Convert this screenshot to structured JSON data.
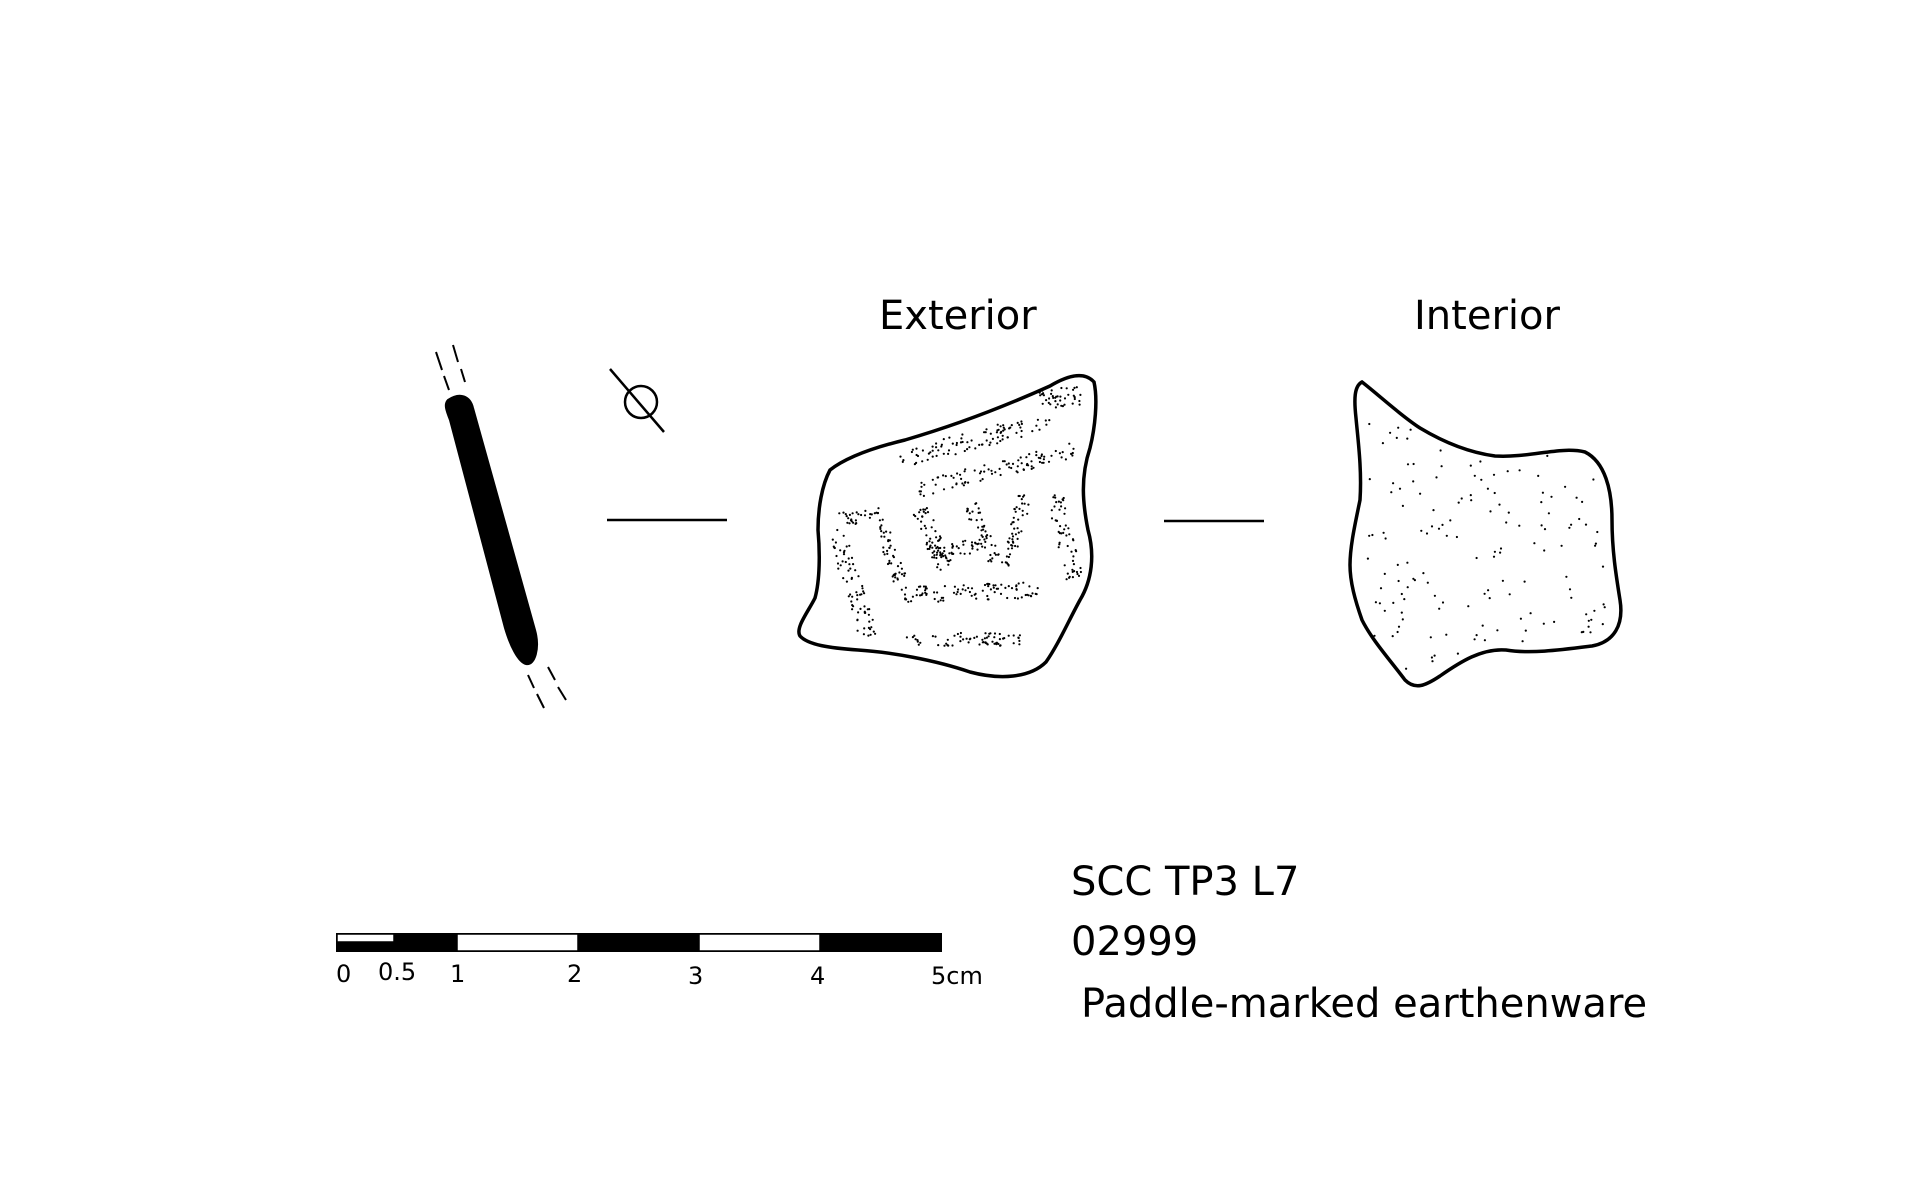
{
  "views": {
    "exterior_label": "Exterior",
    "interior_label": "Interior"
  },
  "symbols": {
    "diameter_symbol": "diameter-icon"
  },
  "scale_bar": {
    "labels": [
      "0",
      "0.5",
      "1",
      "2",
      "3",
      "4",
      "5cm"
    ]
  },
  "info": {
    "context": "SCC TP3 L7",
    "catalog_number": "02999",
    "description": "Paddle-marked earthenware"
  },
  "colors": {
    "ink": "#000000",
    "paper": "#ffffff"
  }
}
